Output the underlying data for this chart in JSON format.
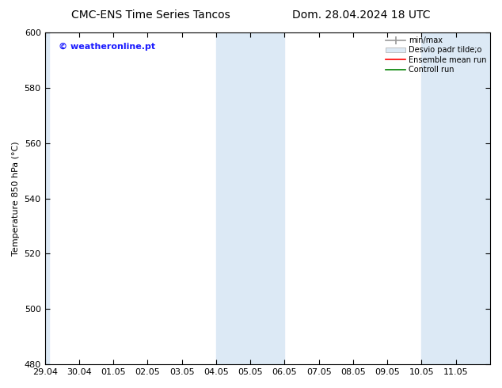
{
  "title_left": "CMC-ENS Time Series Tancos",
  "title_right": "Dom. 28.04.2024 18 UTC",
  "ylabel": "Temperature 850 hPa (°C)",
  "xlim_left": 0,
  "xlim_right": 13,
  "ylim_bottom": 480,
  "ylim_top": 600,
  "yticks": [
    480,
    500,
    520,
    540,
    560,
    580,
    600
  ],
  "xtick_labels": [
    "29.04",
    "30.04",
    "01.05",
    "02.05",
    "03.05",
    "04.05",
    "05.05",
    "06.05",
    "07.05",
    "08.05",
    "09.05",
    "10.05",
    "11.05"
  ],
  "xtick_positions": [
    0,
    1,
    2,
    3,
    4,
    5,
    6,
    7,
    8,
    9,
    10,
    11,
    12
  ],
  "shaded_regions": [
    {
      "x_start": 0,
      "x_end": 0.12,
      "color": "#dce9f5"
    },
    {
      "x_start": 5,
      "x_end": 7,
      "color": "#dce9f5"
    },
    {
      "x_start": 11,
      "x_end": 13,
      "color": "#dce9f5"
    }
  ],
  "watermark_text": "© weatheronline.pt",
  "watermark_color": "#1a1aff",
  "legend_entries": [
    {
      "label": "min/max",
      "color": "#999999",
      "lw": 1.2,
      "style": "line_with_cap"
    },
    {
      "label": "Desvio padr tilde;o",
      "color": "#dce9f5",
      "lw": 8,
      "style": "band"
    },
    {
      "label": "Ensemble mean run",
      "color": "red",
      "lw": 1.2,
      "style": "line"
    },
    {
      "label": "Controll run",
      "color": "green",
      "lw": 1.2,
      "style": "line"
    }
  ],
  "bg_color": "#ffffff",
  "spine_color": "#000000",
  "title_fontsize": 10,
  "tick_fontsize": 8,
  "ylabel_fontsize": 8,
  "watermark_fontsize": 8,
  "legend_fontsize": 7
}
